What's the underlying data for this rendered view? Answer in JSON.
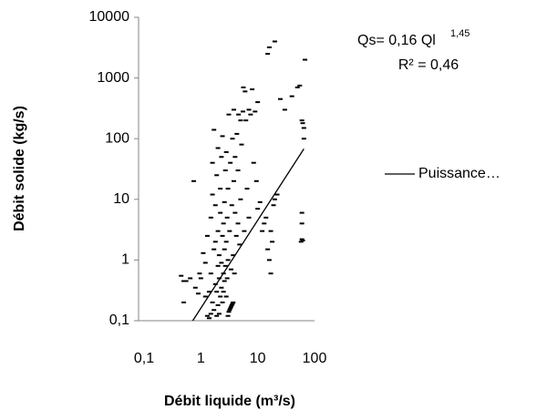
{
  "chart_data": {
    "type": "scatter",
    "xlabel": "Débit liquide (m³/s)",
    "ylabel": "Débit solide (kg/s)",
    "annotations": [
      "Qs= 0,16 Ql",
      "1,45",
      "R² = 0,46"
    ],
    "log_x": true,
    "log_y": true,
    "xlim": [
      0.1,
      100
    ],
    "xticks": [
      {
        "value": 0.1,
        "label": "0,1"
      },
      1,
      10,
      100
    ],
    "ylim": [
      0.1,
      10000
    ],
    "yticks": [
      {
        "value": 0.1,
        "label": "0,1"
      },
      1,
      10,
      100,
      1000,
      10000
    ],
    "color": "#000000",
    "x": [
      0.45,
      0.5,
      0.55,
      0.65,
      0.5,
      0.75,
      0.8,
      0.9,
      0.95,
      1.0,
      1.1,
      1.2,
      1.2,
      1.3,
      1.3,
      1.4,
      1.4,
      1.5,
      1.5,
      1.5,
      1.6,
      1.6,
      1.6,
      1.7,
      1.7,
      1.7,
      1.8,
      1.8,
      1.8,
      1.9,
      1.9,
      1.9,
      2.0,
      2.0,
      2.0,
      2.0,
      2.1,
      2.1,
      2.1,
      2.2,
      2.2,
      2.2,
      2.3,
      2.3,
      2.3,
      2.4,
      2.4,
      2.4,
      2.5,
      2.5,
      2.5,
      2.6,
      2.6,
      2.6,
      2.7,
      2.7,
      2.8,
      2.8,
      2.8,
      2.9,
      2.9,
      3.0,
      3.0,
      3.0,
      3.1,
      3.1,
      3.2,
      3.2,
      3.3,
      3.3,
      3.4,
      3.4,
      3.5,
      3.5,
      3.6,
      3.6,
      3.7,
      3.7,
      3.8,
      3.8,
      3.9,
      4.0,
      4.0,
      4.2,
      4.3,
      4.5,
      4.5,
      4.6,
      4.8,
      5.0,
      5.0,
      5.2,
      5.5,
      5.6,
      5.8,
      6.0,
      6.2,
      6.5,
      7,
      7,
      7.5,
      8,
      8.5,
      9,
      9.5,
      10,
      10,
      11,
      12,
      13,
      14,
      15,
      15,
      16,
      16,
      17,
      17,
      18,
      19,
      20,
      20,
      22,
      25,
      30,
      40,
      50,
      55,
      58,
      60,
      62,
      60,
      60,
      60,
      62,
      65,
      68,
      65
    ],
    "values": [
      0.55,
      0.45,
      0.45,
      0.5,
      0.2,
      20,
      0.35,
      0.28,
      0.6,
      0.5,
      1.3,
      0.25,
      0.9,
      2.5,
      0.12,
      0.11,
      0.3,
      0.13,
      0.6,
      5,
      0.2,
      12,
      40,
      0.15,
      1.5,
      140,
      0.4,
      2,
      8,
      0.12,
      0.3,
      25,
      0.18,
      0.8,
      3,
      70,
      0.13,
      0.5,
      1.2,
      0.25,
      6,
      15,
      0.35,
      0.9,
      50,
      0.2,
      2.5,
      110,
      0.6,
      4,
      0.3,
      1.5,
      9,
      0.45,
      0.8,
      30,
      0.25,
      2,
      60,
      0.5,
      5,
      0.12,
      1,
      15,
      0.14,
      250,
      0.15,
      3,
      0.16,
      40,
      0.17,
      0.7,
      0.18,
      8,
      0.19,
      100,
      0.2,
      1.2,
      20,
      300,
      0.6,
      6,
      50,
      2.5,
      120,
      4,
      30,
      250,
      1.8,
      10,
      200,
      80,
      280,
      700,
      3,
      600,
      200,
      15,
      300,
      5,
      250,
      650,
      40,
      280,
      20,
      7,
      400,
      9,
      3,
      4,
      5,
      2500,
      1.5,
      3200,
      1,
      0.6,
      3,
      2,
      8,
      4000,
      10,
      12,
      450,
      300,
      500,
      700,
      750,
      2,
      2.2,
      2.1,
      4,
      6,
      200,
      180,
      150,
      2000,
      100
    ],
    "trendline": {
      "name": "Puissance…",
      "x": [
        0.72,
        65
      ],
      "values": [
        0.1,
        68
      ],
      "color": "#000000"
    }
  }
}
